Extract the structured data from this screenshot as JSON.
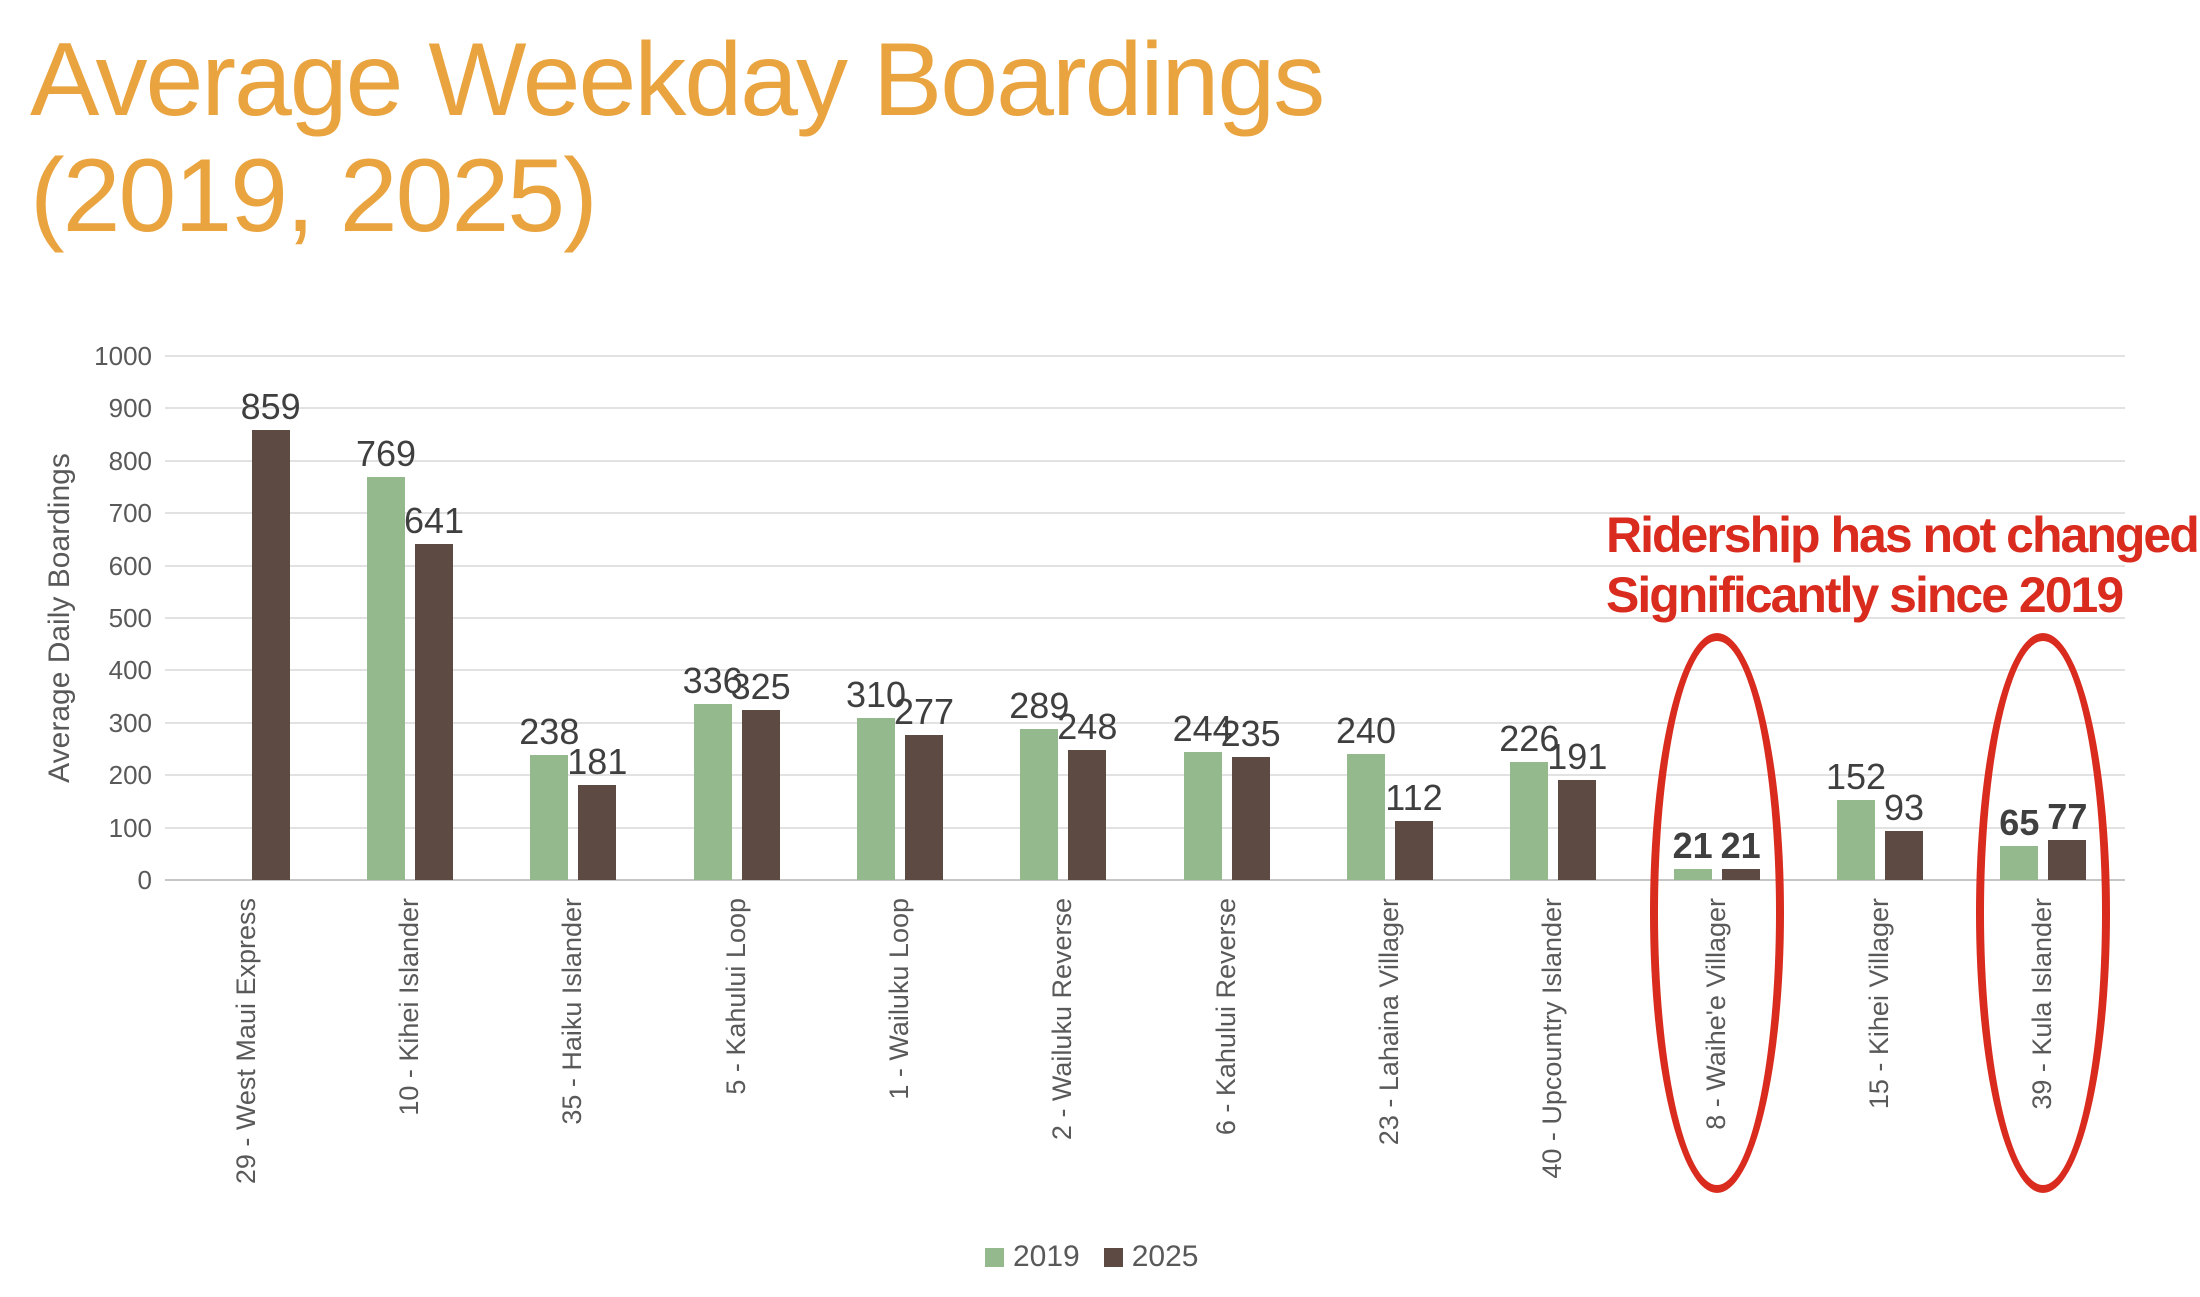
{
  "slide_title": "Average Weekday Boardings\n(2019, 2025)",
  "annotation": {
    "text": "Ridership has not changed\nSignificantly since 2019"
  },
  "chart_data": {
    "type": "bar",
    "title": "Average Weekday Boardings (2019, 2025)",
    "ylabel": "Average Daily Boardings",
    "xlabel": "",
    "ylim": [
      0,
      1000
    ],
    "ytick_step": 100,
    "grid": true,
    "legend_position": "bottom-center",
    "categories": [
      "29 - West Maui Express",
      "10 - Kihei Islander",
      "35 - Haiku Islander",
      "5 - Kahului Loop",
      "1 - Wailuku Loop",
      "2 - Wailuku Reverse",
      "6 - Kahului Reverse",
      "23 - Lahaina Villager",
      "40 - Upcountry Islander",
      "8 - Waihe'e Villager",
      "15 - Kihei Villager",
      "39 - Kula Islander"
    ],
    "series": [
      {
        "name": "2019",
        "color": "#94B98D",
        "values": [
          null,
          769,
          238,
          336,
          310,
          289,
          244,
          240,
          226,
          21,
          152,
          65
        ]
      },
      {
        "name": "2025",
        "color": "#5C4A43",
        "values": [
          859,
          641,
          181,
          325,
          277,
          248,
          235,
          112,
          191,
          21,
          93,
          77
        ]
      }
    ],
    "circled_category_indices": [
      9,
      11
    ],
    "circled_categories": [
      "8 - Waihe'e Villager",
      "39 - Kula Islander"
    ]
  },
  "colors": {
    "title": "#E9A440",
    "annotation_red": "#D92C1F",
    "bar_2019": "#94B98D",
    "bar_2025": "#5C4A43",
    "value_label": "#3F3F3F",
    "axis_text": "#595959",
    "gridline": "#E2E2E2",
    "baseline": "#C6C6C6",
    "background": "#FFFFFF"
  }
}
